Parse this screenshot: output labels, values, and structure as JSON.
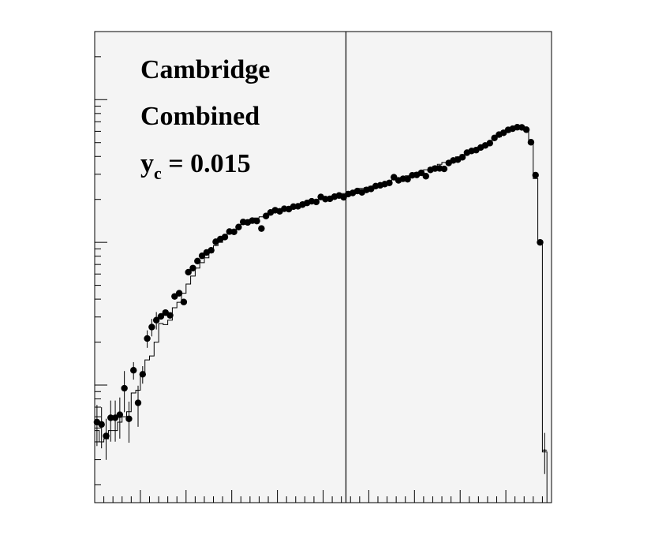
{
  "colors": {
    "background": "#ffffff",
    "plot_background": "#f4f4f4",
    "ink": "#000000"
  },
  "chart_data": {
    "type": "scatter",
    "title": "",
    "xlabel": "",
    "ylabel": "",
    "y_scale": "log",
    "grid": false,
    "xlim": [
      0,
      100
    ],
    "ylim": [
      0.0015,
      3
    ],
    "annotations": {
      "line1": "Cambridge",
      "line2": "Combined",
      "line3_main": "y",
      "line3_sub": "c",
      "line3_rest": " = 0.015"
    },
    "vertical_marker_x": 55,
    "series": [
      {
        "kind": "points_with_errors",
        "x": [
          0.5,
          1.5,
          2.5,
          3.5,
          4.5,
          5.5,
          6.5,
          7.5,
          8.5,
          9.5,
          10.5,
          11.5,
          12.5,
          13.5,
          14.5,
          15.5,
          16.5,
          17.5,
          18.5,
          19.5,
          20.5,
          21.5,
          22.5,
          23.5,
          24.5,
          25.5,
          26.5,
          27.5,
          28.5,
          29.5,
          30.5,
          31.5,
          32.5,
          33.5,
          34.5,
          35.5,
          36.5,
          37.5,
          38.5,
          39.5,
          40.5,
          41.5,
          42.5,
          43.5,
          44.5,
          45.5,
          46.5,
          47.5,
          48.5,
          49.5,
          50.5,
          51.5,
          52.5,
          53.5,
          54.5,
          55.5,
          56.5,
          57.5,
          58.5,
          59.5,
          60.5,
          61.5,
          62.5,
          63.5,
          64.5,
          65.5,
          66.5,
          67.5,
          68.5,
          69.5,
          70.5,
          71.5,
          72.5,
          73.5,
          74.5,
          75.5,
          76.5,
          77.5,
          78.5,
          79.5,
          80.5,
          81.5,
          82.5,
          83.5,
          84.5,
          85.5,
          86.5,
          87.5,
          88.5,
          89.5,
          90.5,
          91.5,
          92.5,
          93.5,
          94.5,
          95.5,
          96.5,
          97.5,
          98.5
        ],
        "y": [
          0.0055,
          0.0053,
          0.0044,
          0.0059,
          0.0059,
          0.0062,
          0.0095,
          0.0058,
          0.0127,
          0.0075,
          0.0119,
          0.0212,
          0.0255,
          0.0285,
          0.0303,
          0.0322,
          0.0308,
          0.0418,
          0.044,
          0.0382,
          0.0618,
          0.066,
          0.074,
          0.0805,
          0.085,
          0.088,
          0.101,
          0.1055,
          0.109,
          0.119,
          0.1185,
          0.128,
          0.139,
          0.138,
          0.142,
          0.141,
          0.125,
          0.153,
          0.162,
          0.168,
          0.165,
          0.172,
          0.171,
          0.178,
          0.179,
          0.184,
          0.189,
          0.194,
          0.192,
          0.208,
          0.201,
          0.202,
          0.209,
          0.213,
          0.207,
          0.218,
          0.222,
          0.229,
          0.224,
          0.233,
          0.237,
          0.248,
          0.251,
          0.256,
          0.261,
          0.286,
          0.272,
          0.279,
          0.277,
          0.295,
          0.297,
          0.307,
          0.291,
          0.322,
          0.329,
          0.33,
          0.327,
          0.36,
          0.375,
          0.38,
          0.395,
          0.425,
          0.437,
          0.443,
          0.462,
          0.478,
          0.496,
          0.539,
          0.569,
          0.586,
          0.614,
          0.626,
          0.641,
          0.639,
          0.616,
          0.503,
          0.296,
          0.1,
          0.0035
        ]
      },
      {
        "kind": "histogram",
        "x": [
          0.5,
          1.5,
          2.5,
          3.5,
          4.5,
          5.5,
          6.5,
          7.5,
          8.5,
          9.5,
          10.5,
          11.5,
          12.5,
          13.5,
          14.5,
          15.5,
          16.5,
          17.5,
          18.5,
          19.5,
          20.5,
          21.5,
          22.5,
          23.5,
          24.5,
          25.5,
          26.5,
          27.5,
          28.5,
          29.5,
          30.5,
          31.5,
          32.5,
          33.5,
          34.5,
          35.5,
          36.5,
          37.5,
          38.5,
          39.5,
          40.5,
          41.5,
          42.5,
          43.5,
          44.5,
          45.5,
          46.5,
          47.5,
          48.5,
          49.5,
          50.5,
          51.5,
          52.5,
          53.5,
          54.5,
          55.5,
          56.5,
          57.5,
          58.5,
          59.5,
          60.5,
          61.5,
          62.5,
          63.5,
          64.5,
          65.5,
          66.5,
          67.5,
          68.5,
          69.5,
          70.5,
          71.5,
          72.5,
          73.5,
          74.5,
          75.5,
          76.5,
          77.5,
          78.5,
          79.5,
          80.5,
          81.5,
          82.5,
          83.5,
          84.5,
          85.5,
          86.5,
          87.5,
          88.5,
          89.5,
          90.5,
          91.5,
          92.5,
          93.5,
          94.5,
          95.5,
          96.5,
          97.5,
          98.5
        ],
        "y": [
          0.0048,
          0.004,
          0.0042,
          0.0048,
          0.0048,
          0.0055,
          0.006,
          0.0065,
          0.0088,
          0.0092,
          0.012,
          0.015,
          0.016,
          0.02,
          0.027,
          0.0265,
          0.0285,
          0.0348,
          0.038,
          0.044,
          0.051,
          0.058,
          0.066,
          0.072,
          0.078,
          0.085,
          0.095,
          0.1,
          0.106,
          0.115,
          0.121,
          0.129,
          0.134,
          0.14,
          0.145,
          0.148,
          0.151,
          0.156,
          0.159,
          0.164,
          0.169,
          0.172,
          0.175,
          0.18,
          0.182,
          0.19,
          0.187,
          0.192,
          0.197,
          0.2,
          0.204,
          0.208,
          0.212,
          0.216,
          0.22,
          0.224,
          0.228,
          0.233,
          0.239,
          0.242,
          0.247,
          0.253,
          0.257,
          0.262,
          0.269,
          0.276,
          0.28,
          0.286,
          0.293,
          0.3,
          0.308,
          0.316,
          0.323,
          0.333,
          0.342,
          0.352,
          0.363,
          0.372,
          0.385,
          0.397,
          0.411,
          0.424,
          0.438,
          0.453,
          0.47,
          0.488,
          0.507,
          0.528,
          0.548,
          0.57,
          0.592,
          0.615,
          0.633,
          0.642,
          0.605,
          0.49,
          0.28,
          0.101,
          0.0034
        ]
      }
    ]
  }
}
